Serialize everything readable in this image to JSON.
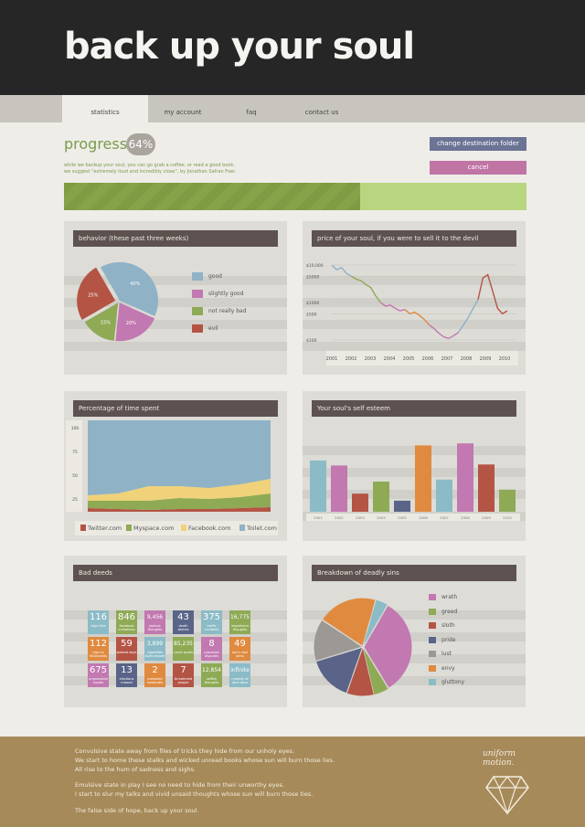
{
  "header": {
    "title": "back up your soul"
  },
  "nav": {
    "tabs": [
      "statistics",
      "my account",
      "faq",
      "contact us"
    ],
    "active": 0
  },
  "progress": {
    "label": "progress :",
    "percent_text": "64%",
    "value": 64,
    "note1": "while we backup your soul, you can go grab a coffee, or read a good book.",
    "note2": "we suggest \"extremely loud and incredibly close\", by Jonathan Safran Foer."
  },
  "actions": {
    "change_label": "change destination folder",
    "cancel_label": "cancel"
  },
  "panels": {
    "behavior": "behavior (these past three weeks)",
    "price": "price of your soul, if you were to sell it to the devil",
    "time": "Percentage of time spent",
    "esteem": "Your soul's self esteem",
    "deeds": "Bad deeds",
    "sins": "Breakdown of deadly sins"
  },
  "colors": {
    "blue": "#8fb2c6",
    "pink": "#c278b0",
    "green": "#8eaa55",
    "red": "#b45444",
    "yellow": "#f0d27a",
    "grey": "#9c9894",
    "orange": "#df8a3f",
    "navy": "#5a6488",
    "teal": "#8bbbc7",
    "dark": "#5d5250"
  },
  "chart_data": [
    {
      "type": "pie",
      "labels": [
        "good",
        "slightly good",
        "not really bad",
        "evil"
      ],
      "values": [
        40,
        20,
        15,
        25
      ],
      "slice_labels": [
        "40%",
        "20%",
        "15%",
        "25%"
      ],
      "colors": [
        "#8fb2c6",
        "#c278b0",
        "#8eaa55",
        "#b45444"
      ]
    },
    {
      "type": "line",
      "x": [
        "2001",
        "2002",
        "2003",
        "2004",
        "2005",
        "2006",
        "2007",
        "2008",
        "2009",
        "2010"
      ],
      "ytick_labels": [
        "$10,000",
        "$5000",
        "$1000",
        "$500",
        "$100"
      ],
      "segments": [
        {
          "color": "#8fb2c6",
          "values": [
            10000,
            7500,
            8500,
            6000,
            5000
          ]
        },
        {
          "color": "#8eaa55",
          "values": [
            5000,
            4200,
            3800,
            3000,
            2500,
            1500,
            1000
          ]
        },
        {
          "color": "#c278b0",
          "values": [
            1000,
            800,
            850,
            700,
            600,
            650
          ]
        },
        {
          "color": "#df8a3f",
          "values": [
            650,
            500,
            550,
            450,
            350,
            250
          ]
        },
        {
          "color": "#c278b0",
          "values": [
            250,
            200,
            150,
            120,
            110,
            130,
            160
          ]
        },
        {
          "color": "#8fb2c6",
          "values": [
            160,
            250,
            400,
            700,
            1200
          ]
        },
        {
          "color": "#b45444",
          "values": [
            1200,
            4500,
            5500,
            2000,
            700,
            500,
            600
          ]
        }
      ]
    },
    {
      "type": "area",
      "ytick_labels": [
        "100",
        "75",
        "50",
        "25"
      ],
      "x": [
        0,
        1,
        2,
        3,
        4,
        5,
        6
      ],
      "series": [
        {
          "name": "Twitter.com",
          "color": "#b45444",
          "values": [
            4,
            3,
            2,
            3,
            3,
            4,
            5
          ]
        },
        {
          "name": "Myspace.com",
          "color": "#8eaa55",
          "values": [
            8,
            9,
            10,
            12,
            11,
            12,
            15
          ]
        },
        {
          "name": "Facebook.com",
          "color": "#f0d27a",
          "values": [
            6,
            8,
            16,
            13,
            12,
            14,
            16
          ]
        },
        {
          "name": "Toilet.com",
          "color": "#8fb2c6",
          "values": [
            82,
            80,
            72,
            72,
            74,
            70,
            64
          ]
        }
      ]
    },
    {
      "type": "bar",
      "categories": [
        "2001",
        "2002",
        "2003",
        "2004",
        "2005",
        "2006",
        "2007",
        "2008",
        "2009",
        "2010"
      ],
      "values": [
        51,
        46,
        18,
        30,
        11,
        66,
        32,
        68,
        47,
        22
      ],
      "colors": [
        "#8bbbc7",
        "#c278b0",
        "#b45444",
        "#8eaa55",
        "#5a6488",
        "#df8a3f",
        "#8bbbc7",
        "#c278b0",
        "#b45444",
        "#8eaa55"
      ],
      "ylim": [
        0,
        80
      ]
    },
    {
      "type": "pie",
      "labels": [
        "wrath",
        "greed",
        "sloth",
        "pride",
        "lust",
        "envy",
        "gluttony"
      ],
      "values": [
        33,
        5,
        9,
        15,
        14,
        20,
        4
      ],
      "colors": [
        "#c278b0",
        "#8eaa55",
        "#b45444",
        "#5a6488",
        "#9c9894",
        "#df8a3f",
        "#8bbbc7"
      ]
    }
  ],
  "deeds": [
    {
      "num": "116",
      "label": "days free",
      "color": "#8bbbc7"
    },
    {
      "num": "846",
      "label": "facebook invitations",
      "color": "#8eaa55"
    },
    {
      "num": "9,456",
      "label": "jealous thoughts",
      "color": "#c278b0"
    },
    {
      "num": "43",
      "label": "death wishes",
      "color": "#5a6488"
    },
    {
      "num": "375",
      "label": "traffic incidents",
      "color": "#8bbbc7"
    },
    {
      "num": "16,775",
      "label": "impatience thoughts",
      "color": "#8eaa55"
    },
    {
      "num": "112",
      "label": "trips to McDonalds",
      "color": "#df8a3f"
    },
    {
      "num": "59",
      "label": "wasted days",
      "color": "#b45444"
    },
    {
      "num": "3,899",
      "label": "cigarettes butts tossed",
      "color": "#8bbbc7"
    },
    {
      "num": "85,235",
      "label": "curse words",
      "color": "#8eaa55"
    },
    {
      "num": "8",
      "label": "provoked disputes",
      "color": "#c278b0"
    },
    {
      "num": "49",
      "label": "sat in taxi jams",
      "color": "#df8a3f"
    },
    {
      "num": "675",
      "label": "unprovoked insults",
      "color": "#c278b0"
    },
    {
      "num": "13",
      "label": "elections missed",
      "color": "#5a6488"
    },
    {
      "num": "2",
      "label": "provoked headbutts",
      "color": "#df8a3f"
    },
    {
      "num": "7",
      "label": "threatened people",
      "color": "#b45444"
    },
    {
      "num": "12,854",
      "label": "selfish thoughts",
      "color": "#8eaa55"
    },
    {
      "num": "infinite",
      "label": "number of dark days",
      "color": "#8bbbc7"
    }
  ],
  "footer": {
    "lines": [
      "Convulsive state away from files of tricks they hide from our unholy eyes.",
      "We start to home these stalks and wicked unread books whose sun will burn those lies.",
      "All rise to the hum of sadness and sighs.",
      "Emulsive state in play I see no need to hide from their unworthy eyes.",
      "I start to slur my talks and vivid unsaid thoughts whose sun will burn those ties.",
      "The false side of hope, back up your soul."
    ],
    "logo_line1": "uniform",
    "logo_line2": "motion."
  }
}
